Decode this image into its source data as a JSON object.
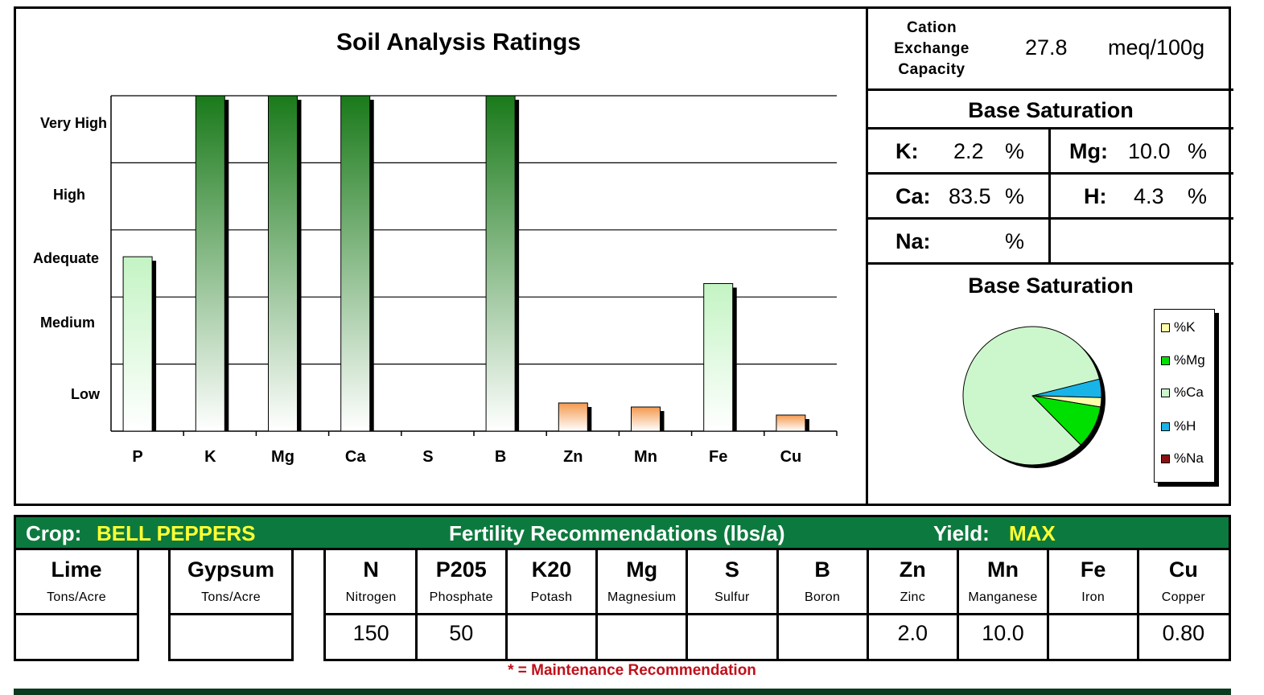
{
  "chart": {
    "title": "Soil Analysis Ratings",
    "y_levels": [
      "Very High",
      "High",
      "Adequate",
      "Medium",
      "Low"
    ],
    "categories": [
      "P",
      "K",
      "Mg",
      "Ca",
      "S",
      "B",
      "Zn",
      "Mn",
      "Fe",
      "Cu"
    ]
  },
  "chart_data": {
    "type": "bar",
    "title": "Soil Analysis Ratings",
    "categories": [
      "P",
      "K",
      "Mg",
      "Ca",
      "S",
      "B",
      "Zn",
      "Mn",
      "Fe",
      "Cu"
    ],
    "y_tick_labels": [
      "Low",
      "Medium",
      "Adequate",
      "High",
      "Very High"
    ],
    "ylim": [
      0,
      5
    ],
    "values": [
      2.6,
      5.0,
      5.0,
      5.0,
      0,
      5.0,
      0.42,
      0.36,
      2.2,
      0.24
    ],
    "bar_colors": [
      "#c8f5c8",
      "#1e7a1e",
      "#1e7a1e",
      "#1e7a1e",
      "#ffffff",
      "#1e7a1e",
      "#f4a060",
      "#f4a060",
      "#c8f5c8",
      "#f4a060"
    ],
    "grid": true
  },
  "cec": {
    "label_lines": [
      "Cation",
      "Exchange",
      "Capacity"
    ],
    "value": "27.8",
    "unit": "meq/100g"
  },
  "base_saturation": {
    "title": "Base Saturation",
    "pct": "%",
    "k": {
      "label": "K:",
      "value": "2.2"
    },
    "mg": {
      "label": "Mg:",
      "value": "10.0"
    },
    "ca": {
      "label": "Ca:",
      "value": "83.5"
    },
    "h": {
      "label": "H:",
      "value": "4.3"
    },
    "na": {
      "label": "Na:",
      "value": ""
    }
  },
  "pie": {
    "title": "Base Saturation",
    "slices": [
      {
        "name": "%K",
        "value": 2.2,
        "color": "#ffffaa"
      },
      {
        "name": "%Mg",
        "value": 10.0,
        "color": "#00e000"
      },
      {
        "name": "%Ca",
        "value": 83.5,
        "color": "#ccf7cc"
      },
      {
        "name": "%H",
        "value": 4.3,
        "color": "#18b4e8"
      },
      {
        "name": "%Na",
        "value": 0,
        "color": "#8b1010"
      }
    ]
  },
  "recommendations": {
    "crop_label": "Crop:",
    "crop_value": "BELL PEPPERS",
    "title": "Fertility Recommendations (lbs/a)",
    "yield_label": "Yield:",
    "yield_value": "MAX",
    "lime": {
      "title": "Lime",
      "sub": "Tons/Acre",
      "value": ""
    },
    "gypsum": {
      "title": "Gypsum",
      "sub": "Tons/Acre",
      "value": ""
    },
    "nutrients": [
      {
        "title": "N",
        "sub": "Nitrogen",
        "value": "150"
      },
      {
        "title": "P205",
        "sub": "Phosphate",
        "value": "50"
      },
      {
        "title": "K20",
        "sub": "Potash",
        "value": ""
      },
      {
        "title": "Mg",
        "sub": "Magnesium",
        "value": ""
      },
      {
        "title": "S",
        "sub": "Sulfur",
        "value": ""
      },
      {
        "title": "B",
        "sub": "Boron",
        "value": ""
      },
      {
        "title": "Zn",
        "sub": "Zinc",
        "value": "2.0"
      },
      {
        "title": "Mn",
        "sub": "Manganese",
        "value": "10.0"
      },
      {
        "title": "Fe",
        "sub": "Iron",
        "value": ""
      },
      {
        "title": "Cu",
        "sub": "Copper",
        "value": "0.80"
      }
    ],
    "maintenance_note": "* = Maintenance Recommendation"
  }
}
